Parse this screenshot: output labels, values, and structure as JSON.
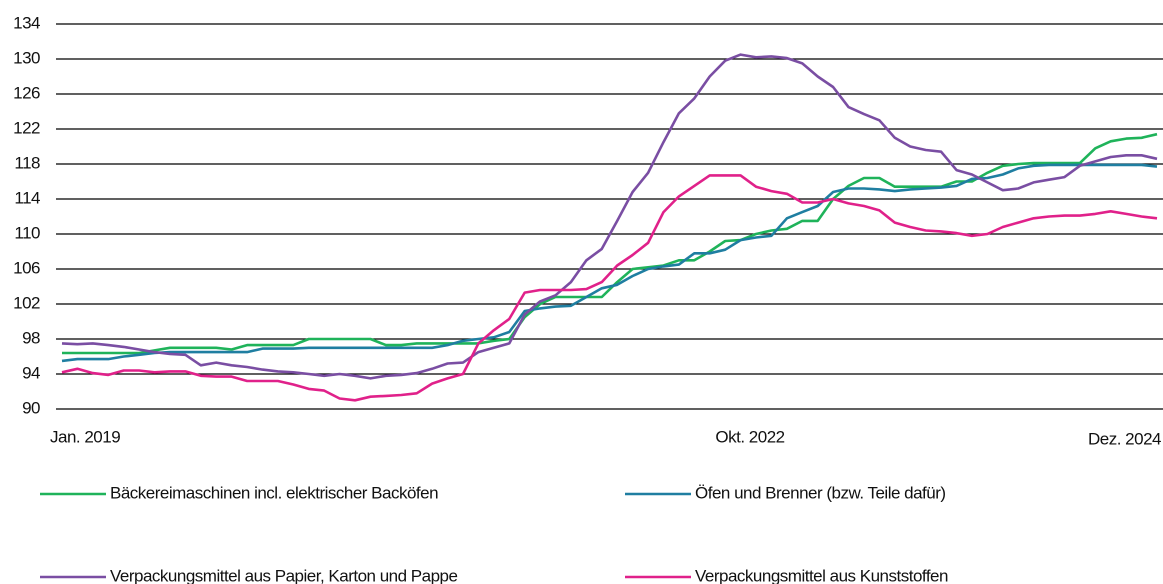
{
  "chart_data": {
    "type": "line",
    "categories": [
      "Jan. 2019",
      null,
      null,
      null,
      null,
      null,
      null,
      null,
      null,
      null,
      null,
      null,
      null,
      null,
      null,
      null,
      null,
      null,
      null,
      null,
      null,
      null,
      null,
      null,
      null,
      null,
      null,
      null,
      null,
      null,
      null,
      null,
      null,
      null,
      null,
      null,
      null,
      null,
      null,
      null,
      null,
      null,
      null,
      null,
      null,
      "Okt. 2022",
      null,
      null,
      null,
      null,
      null,
      null,
      null,
      null,
      null,
      null,
      null,
      null,
      null,
      null,
      null,
      null,
      null,
      null,
      null,
      null,
      null,
      null,
      null,
      null,
      null,
      "Dez. 2024"
    ],
    "series": [
      {
        "name": "Bäckereimaschinen incl. elektrischer Backöfen",
        "color": "#1fb35a",
        "values": [
          96.4,
          96.4,
          96.4,
          96.4,
          96.4,
          96.4,
          96.7,
          97,
          97,
          97,
          97,
          96.8,
          97.3,
          97.3,
          97.3,
          97.3,
          98,
          98,
          98,
          98,
          98,
          97.3,
          97.3,
          97.5,
          97.5,
          97.5,
          97.5,
          97.5,
          97.8,
          98,
          100.5,
          102,
          102.8,
          102.8,
          102.8,
          102.8,
          104.5,
          106,
          106.2,
          106.4,
          107,
          107,
          108,
          109.2,
          109.3,
          110,
          110.4,
          110.6,
          111.5,
          111.5,
          114,
          115.5,
          116.4,
          116.4,
          115.4,
          115.4,
          115.4,
          115.4,
          116,
          116,
          117,
          117.8,
          118,
          118.1,
          118.1,
          118.1,
          118.1,
          119.8,
          120.6,
          120.9,
          121,
          121.4
        ]
      },
      {
        "name": "Öfen und Brenner (bzw. Teile dafür)",
        "color": "#1f7ea1",
        "values": [
          95.5,
          95.7,
          95.7,
          95.7,
          96,
          96.2,
          96.4,
          96.5,
          96.5,
          96.5,
          96.5,
          96.5,
          96.5,
          96.9,
          96.9,
          96.9,
          97,
          97,
          97,
          97,
          97,
          97,
          97,
          97,
          97,
          97.3,
          97.8,
          98,
          98.2,
          98.8,
          101.2,
          101.5,
          101.7,
          101.8,
          102.8,
          103.8,
          104.2,
          105.2,
          106,
          106.3,
          106.5,
          107.8,
          107.8,
          108.2,
          109.3,
          109.6,
          109.8,
          111.8,
          112.5,
          113.2,
          114.8,
          115.2,
          115.2,
          115.1,
          114.9,
          115.1,
          115.2,
          115.3,
          115.5,
          116.3,
          116.4,
          116.8,
          117.5,
          117.8,
          117.9,
          117.9,
          117.9,
          117.9,
          117.9,
          117.9,
          117.9,
          117.7
        ]
      },
      {
        "name": "Verpackungsmittel aus Papier, Karton und Pappe",
        "color": "#7a4ea3",
        "values": [
          97.5,
          97.4,
          97.5,
          97.3,
          97.1,
          96.8,
          96.5,
          96.3,
          96.2,
          95,
          95.3,
          95,
          94.8,
          94.5,
          94.3,
          94.2,
          94,
          93.8,
          94,
          93.8,
          93.5,
          93.8,
          93.9,
          94.1,
          94.6,
          95.2,
          95.3,
          96.5,
          97,
          97.5,
          100.8,
          102.3,
          103,
          104.5,
          107,
          108.3,
          111.5,
          114.8,
          117,
          120.5,
          123.8,
          125.5,
          128,
          129.8,
          130.5,
          130.2,
          130.3,
          130.1,
          129.5,
          128,
          126.8,
          124.5,
          123.7,
          123,
          121,
          120,
          119.6,
          119.4,
          117.3,
          116.8,
          115.9,
          115,
          115.2,
          115.9,
          116.2,
          116.5,
          117.8,
          118.3,
          118.8,
          119,
          119,
          118.6
        ]
      },
      {
        "name": "Verpackungsmittel aus Kunststoffen",
        "color": "#e0218a",
        "values": [
          94.2,
          94.6,
          94.1,
          93.9,
          94.4,
          94.4,
          94.2,
          94.3,
          94.3,
          93.8,
          93.7,
          93.7,
          93.2,
          93.2,
          93.2,
          92.8,
          92.3,
          92.1,
          91.2,
          91,
          91.4,
          91.5,
          91.6,
          91.8,
          92.9,
          93.5,
          94,
          97.5,
          99,
          100.3,
          103.3,
          103.6,
          103.6,
          103.6,
          103.7,
          104.5,
          106.4,
          107.6,
          109,
          112.5,
          114.3,
          115.5,
          116.7,
          116.7,
          116.7,
          115.4,
          114.9,
          114.6,
          113.6,
          113.6,
          114,
          113.5,
          113.2,
          112.7,
          111.3,
          110.8,
          110.4,
          110.3,
          110.1,
          109.8,
          110,
          110.8,
          111.3,
          111.8,
          112,
          112.1,
          112.1,
          112.3,
          112.6,
          112.3,
          112,
          111.8
        ]
      }
    ],
    "ylim": [
      90,
      134
    ],
    "yticks": [
      90,
      94,
      98,
      102,
      106,
      110,
      114,
      118,
      122,
      126,
      130,
      134
    ],
    "grid": true
  }
}
